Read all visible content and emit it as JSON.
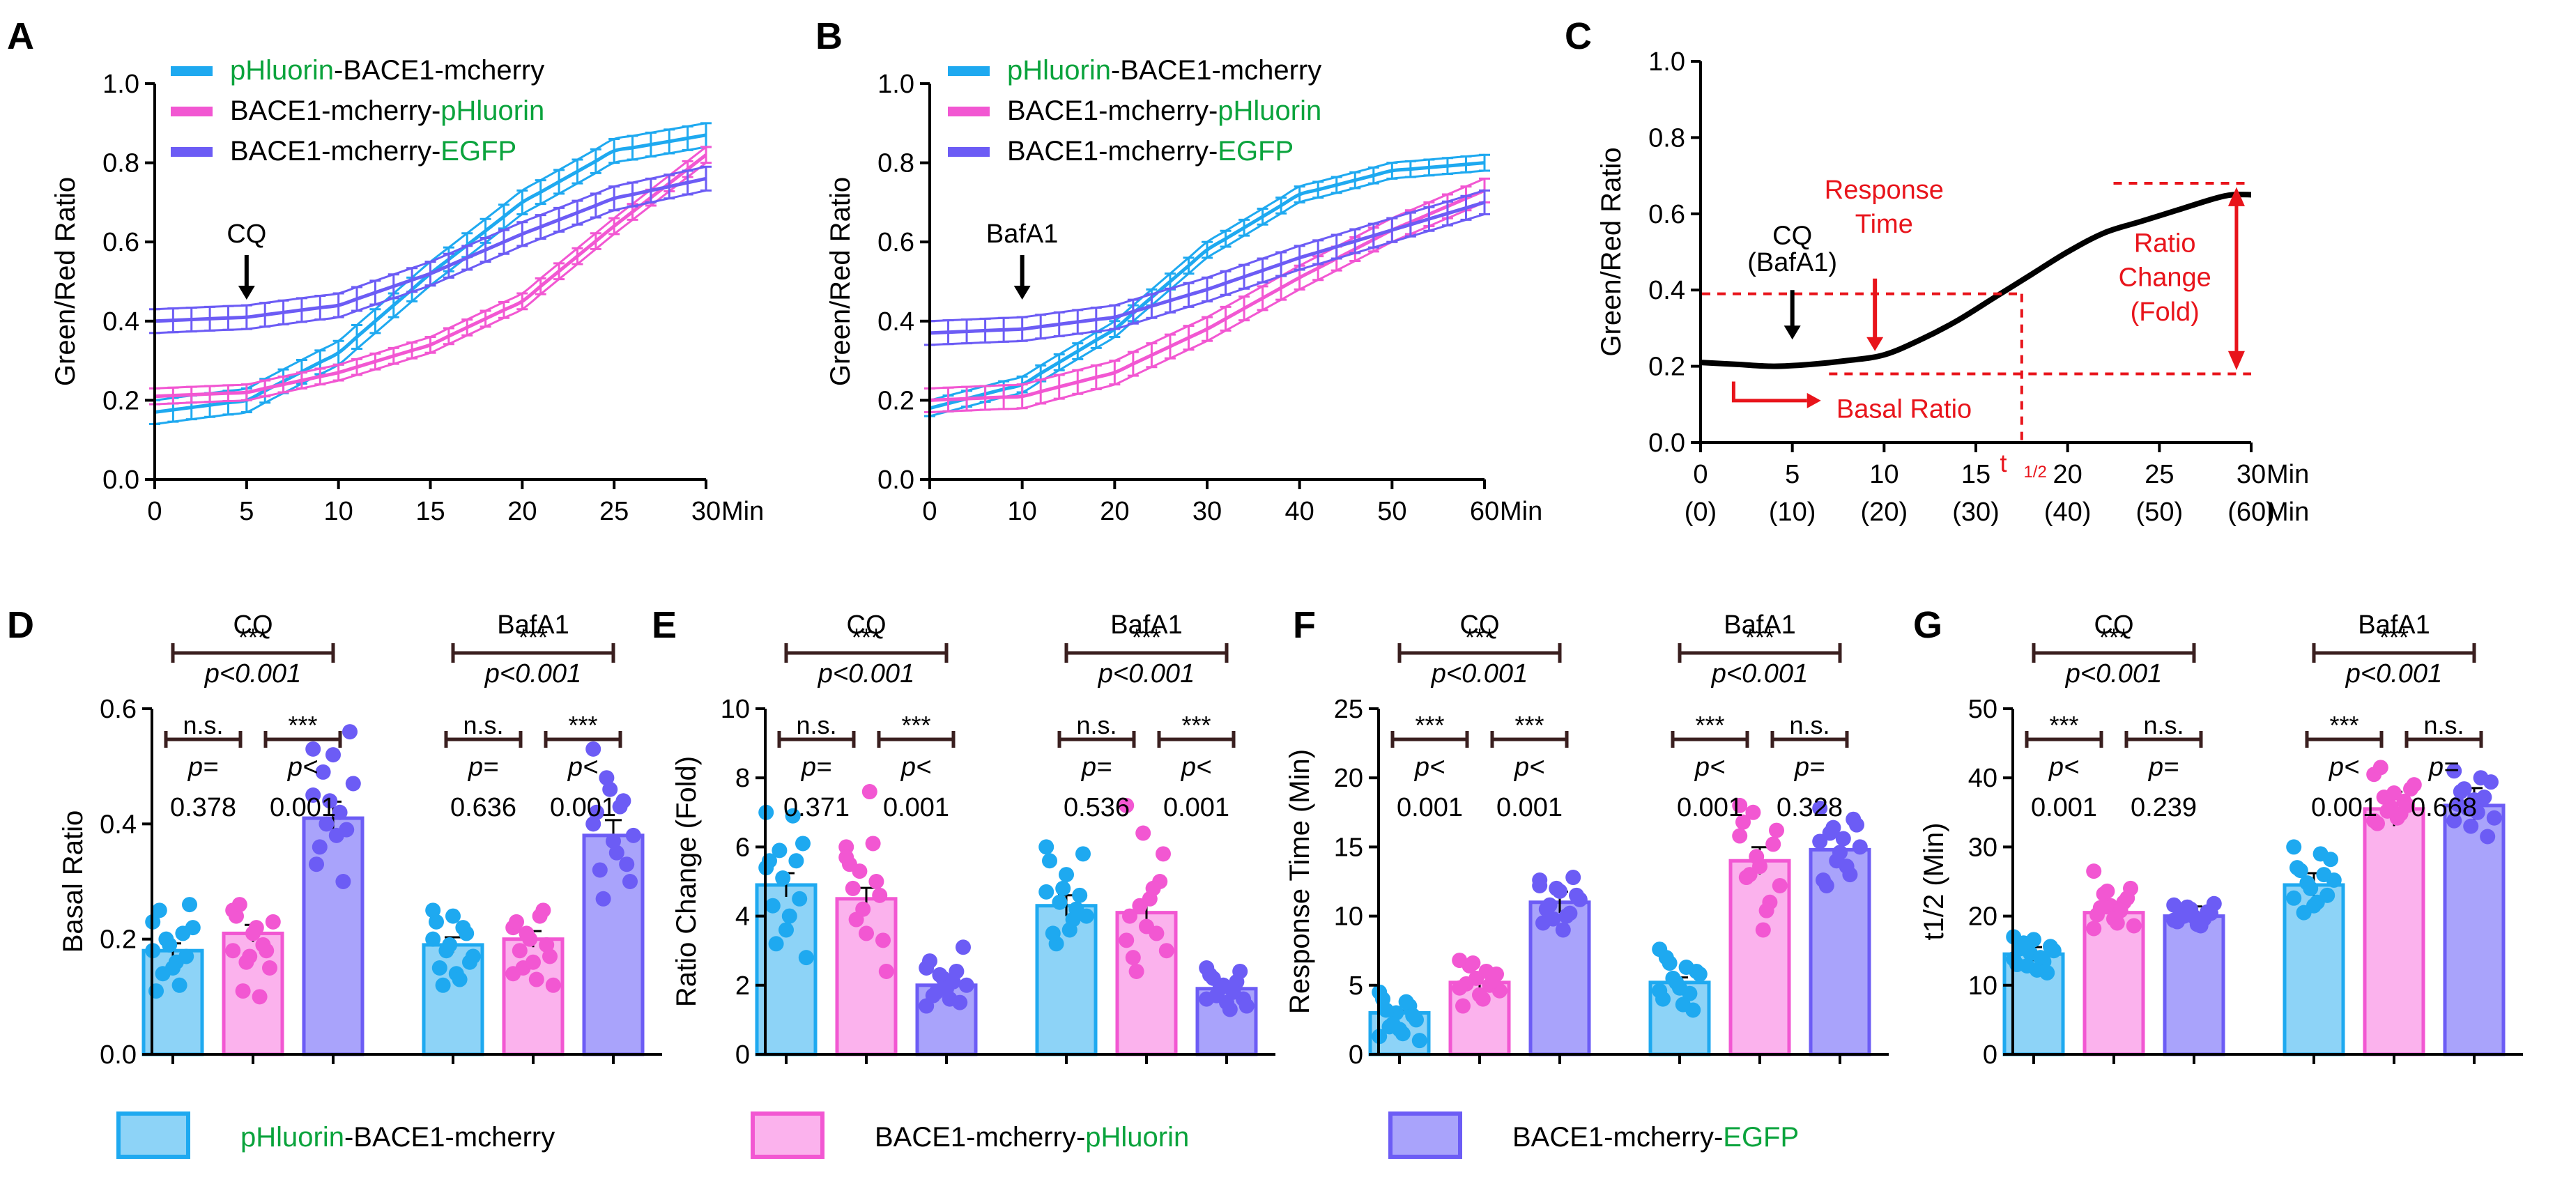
{
  "colors": {
    "blue": "#1ea9f0",
    "blue_fill": "#8dd3f7",
    "pink": "#f257d2",
    "pink_fill": "#fbb2ed",
    "purple": "#6c5cf5",
    "purple_fill": "#a9a3fb",
    "green": "#0aa33c",
    "red": "#e8141b",
    "dark": "#3a1f1f"
  },
  "legend_names": {
    "blue": {
      "a": "pHluorin",
      "b": "-BACE1-mcherry"
    },
    "pink": {
      "a": "BACE1-mcherry-",
      "b": "pHluorin"
    },
    "purple": {
      "a": "BACE1-mcherry-",
      "b": "EGFP"
    }
  },
  "chart_data": [
    {
      "panel": "A",
      "type": "line",
      "ylabel": "Green/Red Ratio",
      "xunit": "Min",
      "xlim": [
        0,
        30
      ],
      "ylim": [
        0,
        1.0
      ],
      "xticks": [
        "0",
        "5",
        "10",
        "15",
        "20",
        "25",
        "30"
      ],
      "yticks": [
        "0.0",
        "0.2",
        "0.4",
        "0.6",
        "0.8",
        "1.0"
      ],
      "annotation": {
        "label": "CQ",
        "x": 5
      },
      "series": [
        {
          "name": "pHluorin-BACE1-mcherry",
          "color": "blue",
          "x": [
            0,
            5,
            10,
            15,
            20,
            25,
            30
          ],
          "y": [
            0.17,
            0.2,
            0.32,
            0.52,
            0.7,
            0.83,
            0.87
          ],
          "err": 0.03
        },
        {
          "name": "BACE1-mcherry-pHluorin",
          "color": "pink",
          "x": [
            0,
            5,
            10,
            15,
            20,
            25,
            30
          ],
          "y": [
            0.21,
            0.22,
            0.27,
            0.34,
            0.45,
            0.64,
            0.82
          ],
          "err": 0.02
        },
        {
          "name": "BACE1-mcherry-EGFP",
          "color": "purple",
          "x": [
            0,
            5,
            10,
            15,
            20,
            25,
            30
          ],
          "y": [
            0.4,
            0.41,
            0.44,
            0.52,
            0.62,
            0.71,
            0.76
          ],
          "err": 0.03
        }
      ]
    },
    {
      "panel": "B",
      "type": "line",
      "ylabel": "Green/Red Ratio",
      "xunit": "Min",
      "xlim": [
        0,
        60
      ],
      "ylim": [
        0,
        1.0
      ],
      "xticks": [
        "0",
        "10",
        "20",
        "30",
        "40",
        "50",
        "60"
      ],
      "yticks": [
        "0.0",
        "0.2",
        "0.4",
        "0.6",
        "0.8",
        "1.0"
      ],
      "annotation": {
        "label": "BafA1",
        "x": 10
      },
      "series": [
        {
          "name": "pHluorin-BACE1-mcherry",
          "color": "blue",
          "x": [
            0,
            10,
            20,
            30,
            40,
            50,
            60
          ],
          "y": [
            0.18,
            0.24,
            0.38,
            0.58,
            0.72,
            0.78,
            0.8
          ],
          "err": 0.02
        },
        {
          "name": "BACE1-mcherry-pHluorin",
          "color": "pink",
          "x": [
            0,
            10,
            20,
            30,
            40,
            50,
            60
          ],
          "y": [
            0.2,
            0.21,
            0.27,
            0.38,
            0.51,
            0.63,
            0.73
          ],
          "err": 0.03
        },
        {
          "name": "BACE1-mcherry-EGFP",
          "color": "purple",
          "x": [
            0,
            10,
            20,
            30,
            40,
            50,
            60
          ],
          "y": [
            0.37,
            0.38,
            0.41,
            0.48,
            0.56,
            0.63,
            0.7
          ],
          "err": 0.03
        }
      ]
    },
    {
      "panel": "C",
      "type": "line",
      "ylabel": "Green/Red Ratio",
      "xunit": "Min",
      "xlim": [
        0,
        30
      ],
      "ylim": [
        0,
        1.0
      ],
      "xticks": [
        "0",
        "5",
        "10",
        "15",
        "20",
        "25",
        "30"
      ],
      "xticks2": [
        "(0)",
        "(10)",
        "(20)",
        "(30)",
        "(40)",
        "(50)",
        "(60)"
      ],
      "yticks": [
        "0.0",
        "0.2",
        "0.4",
        "0.6",
        "0.8",
        "1.0"
      ],
      "curve": {
        "x": [
          0,
          2,
          4,
          6,
          8,
          10,
          12,
          14,
          16,
          18,
          20,
          22,
          24,
          26,
          28,
          29,
          30
        ],
        "y": [
          0.21,
          0.205,
          0.2,
          0.205,
          0.215,
          0.23,
          0.27,
          0.32,
          0.38,
          0.44,
          0.5,
          0.55,
          0.58,
          0.61,
          0.64,
          0.65,
          0.65
        ]
      },
      "annotations": {
        "agent": "CQ",
        "agent2": "(BafA1)",
        "response": [
          "Response",
          "Time"
        ],
        "ratio_change": [
          "Ratio",
          "Change",
          "(Fold)"
        ],
        "basal": "Basal Ratio",
        "thalf": "t",
        "thalf_sub": "1/2"
      }
    },
    {
      "panel": "D",
      "type": "bar",
      "ylabel": "Basal  Ratio",
      "ylim": [
        0,
        0.6
      ],
      "yticks": [
        "0.0",
        "0.2",
        "0.4",
        "0.6"
      ],
      "groups": [
        {
          "label": "CQ",
          "values": [
            0.18,
            0.21,
            0.41
          ],
          "points": [
            [
              0.23,
              0.26,
              0.21,
              0.16,
              0.19,
              0.14,
              0.11,
              0.22,
              0.17,
              0.12,
              0.15,
              0.2,
              0.25,
              0.18
            ],
            [
              0.25,
              0.15,
              0.19,
              0.22,
              0.17,
              0.11,
              0.24,
              0.23,
              0.18,
              0.1,
              0.21,
              0.16,
              0.26,
              0.18
            ],
            [
              0.45,
              0.56,
              0.3,
              0.38,
              0.44,
              0.49,
              0.33,
              0.47,
              0.39,
              0.42,
              0.52,
              0.4,
              0.36,
              0.53
            ]
          ],
          "comparisons": [
            {
              "sig": "n.s.",
              "p1": "p=",
              "p2": "0.378"
            },
            {
              "sig": "***",
              "p1": "p<",
              "p2": "0.001"
            },
            {
              "sig": "***",
              "p1": "p<0.001",
              "p2": ""
            }
          ]
        },
        {
          "label": "BafA1",
          "values": [
            0.19,
            0.2,
            0.38
          ],
          "points": [
            [
              0.25,
              0.16,
              0.22,
              0.14,
              0.19,
              0.12,
              0.23,
              0.17,
              0.21,
              0.13,
              0.24,
              0.18,
              0.15,
              0.2
            ],
            [
              0.22,
              0.17,
              0.25,
              0.13,
              0.2,
              0.15,
              0.23,
              0.12,
              0.19,
              0.24,
              0.16,
              0.21,
              0.18,
              0.14
            ],
            [
              0.4,
              0.3,
              0.44,
              0.35,
              0.46,
              0.27,
              0.42,
              0.38,
              0.33,
              0.43,
              0.37,
              0.48,
              0.32,
              0.53
            ]
          ],
          "comparisons": [
            {
              "sig": "n.s.",
              "p1": "p=",
              "p2": "0.636"
            },
            {
              "sig": "***",
              "p1": "p<",
              "p2": "0.001"
            },
            {
              "sig": "***",
              "p1": "p<0.001",
              "p2": ""
            }
          ]
        }
      ]
    },
    {
      "panel": "E",
      "type": "bar",
      "ylabel": "Ratio Change (Fold)",
      "ylim": [
        0,
        10
      ],
      "yticks": [
        "0",
        "2",
        "4",
        "6",
        "8",
        "10"
      ],
      "groups": [
        {
          "label": "CQ",
          "values": [
            4.9,
            4.5,
            2.0
          ],
          "points": [
            [
              7.0,
              6.1,
              5.6,
              4.0,
              5.1,
              3.2,
              5.6,
              2.8,
              4.5,
              6.9,
              3.6,
              5.9,
              4.3,
              5.4
            ],
            [
              6.0,
              3.3,
              5.0,
              7.6,
              4.2,
              3.9,
              5.5,
              2.4,
              4.6,
              6.1,
              3.5,
              5.3,
              4.8,
              5.7
            ],
            [
              2.5,
              3.1,
              2.4,
              1.6,
              2.2,
              1.8,
              2.7,
              2.0,
              1.5,
              2.1,
              1.9,
              2.3,
              1.7,
              1.4
            ]
          ],
          "comparisons": [
            {
              "sig": "n.s.",
              "p1": "p=",
              "p2": "0.371"
            },
            {
              "sig": "***",
              "p1": "p<",
              "p2": "0.001"
            },
            {
              "sig": "***",
              "p1": "p<0.001",
              "p2": ""
            }
          ]
        },
        {
          "label": "BafA1",
          "values": [
            4.3,
            4.1,
            1.9
          ],
          "points": [
            [
              6.0,
              5.8,
              4.2,
              3.6,
              4.8,
              3.2,
              5.6,
              4.0,
              4.6,
              3.9,
              5.2,
              4.4,
              3.5,
              4.7
            ],
            [
              7.2,
              5.8,
              3.5,
              4.5,
              6.4,
              2.4,
              4.0,
              3.0,
              5.0,
              4.8,
              3.7,
              4.3,
              2.8,
              3.3
            ],
            [
              2.5,
              1.6,
              2.1,
              1.3,
              2.0,
              1.7,
              2.3,
              1.4,
              2.4,
              1.8,
              1.5,
              1.9,
              2.2,
              1.6
            ]
          ],
          "comparisons": [
            {
              "sig": "n.s.",
              "p1": "p=",
              "p2": "0.536"
            },
            {
              "sig": "***",
              "p1": "p<",
              "p2": "0.001"
            },
            {
              "sig": "***",
              "p1": "p<0.001",
              "p2": ""
            }
          ]
        }
      ]
    },
    {
      "panel": "F",
      "type": "bar",
      "ylabel": "Response Time (Min)",
      "ylim": [
        0,
        25
      ],
      "yticks": [
        "0",
        "5",
        "10",
        "15",
        "20",
        "25"
      ],
      "groups": [
        {
          "label": "CQ",
          "values": [
            3.0,
            5.2,
            11.0
          ],
          "points": [
            [
              4.5,
              2.5,
              3.5,
              1.5,
              3.0,
              2.0,
              4.0,
              1.0,
              2.8,
              3.8,
              1.8,
              2.2,
              3.2,
              1.3
            ],
            [
              6.8,
              5.8,
              5.0,
              4.0,
              5.5,
              6.4,
              3.5,
              4.6,
              5.3,
              6.0,
              4.3,
              6.6,
              5.1,
              4.8
            ],
            [
              12.6,
              11.5,
              10.2,
              9.0,
              12.0,
              10.8,
              9.5,
              11.2,
              12.8,
              10.0,
              11.8,
              9.8,
              10.5,
              12.2
            ]
          ],
          "comparisons": [
            {
              "sig": "***",
              "p1": "p<",
              "p2": "0.001"
            },
            {
              "sig": "***",
              "p1": "p<",
              "p2": "0.001"
            },
            {
              "sig": "***",
              "p1": "p<0.001",
              "p2": ""
            }
          ]
        },
        {
          "label": "BafA1",
          "values": [
            5.2,
            14.0,
            14.8
          ],
          "points": [
            [
              7.6,
              6.0,
              4.4,
              3.6,
              5.2,
              6.6,
              4.0,
              5.8,
              3.2,
              6.3,
              4.8,
              5.5,
              7.0,
              4.6
            ],
            [
              18.0,
              16.2,
              11.0,
              9.0,
              14.3,
              13.0,
              16.8,
              12.2,
              15.2,
              10.4,
              13.6,
              17.5,
              12.8,
              15.8
            ],
            [
              17.8,
              16.6,
              13.0,
              15.6,
              14.0,
              16.0,
              12.6,
              15.0,
              17.0,
              13.6,
              14.6,
              16.4,
              12.2,
              15.4
            ]
          ],
          "comparisons": [
            {
              "sig": "***",
              "p1": "p<",
              "p2": "0.001"
            },
            {
              "sig": "n.s.",
              "p1": "p=",
              "p2": "0.328"
            },
            {
              "sig": "***",
              "p1": "p<0.001",
              "p2": ""
            }
          ]
        }
      ]
    },
    {
      "panel": "G",
      "type": "bar",
      "ylabel": "t1/2 (Min)",
      "ylim": [
        0,
        50
      ],
      "yticks": [
        "0",
        "10",
        "20",
        "30",
        "40",
        "50"
      ],
      "groups": [
        {
          "label": "CQ",
          "values": [
            14.5,
            20.5,
            20.0
          ],
          "points": [
            [
              17.0,
              15.6,
              13.4,
              12.2,
              14.6,
              16.1,
              13.0,
              15.0,
              11.8,
              14.0,
              16.6,
              12.8,
              15.3,
              13.8
            ],
            [
              26.5,
              24.0,
              22.0,
              19.0,
              21.5,
              23.2,
              20.2,
              18.6,
              22.6,
              20.8,
              19.6,
              23.6,
              21.2,
              18.2
            ],
            [
              21.6,
              20.4,
              19.6,
              18.8,
              21.0,
              20.0,
              19.2,
              21.8,
              20.6,
              18.6,
              19.9,
              21.3,
              20.3,
              19.4
            ]
          ],
          "comparisons": [
            {
              "sig": "***",
              "p1": "p<",
              "p2": "0.001"
            },
            {
              "sig": "n.s.",
              "p1": "p=",
              "p2": "0.239"
            },
            {
              "sig": "***",
              "p1": "p<0.001",
              "p2": ""
            }
          ]
        },
        {
          "label": "BafA1",
          "values": [
            24.5,
            35.5,
            36.0
          ],
          "points": [
            [
              30.0,
              28.2,
              26.0,
              22.0,
              24.0,
              20.5,
              27.0,
              25.2,
              23.0,
              29.0,
              21.5,
              24.8,
              26.6,
              22.6
            ],
            [
              40.5,
              38.4,
              36.6,
              34.2,
              35.8,
              37.2,
              33.4,
              39.0,
              36.0,
              34.8,
              37.8,
              35.2,
              41.5,
              33.8
            ],
            [
              41.0,
              39.4,
              37.2,
              35.0,
              33.0,
              38.4,
              36.2,
              34.2,
              31.5,
              40.0,
              36.8,
              35.6,
              38.0,
              33.8
            ]
          ],
          "comparisons": [
            {
              "sig": "***",
              "p1": "p<",
              "p2": "0.001"
            },
            {
              "sig": "n.s.",
              "p1": "p=",
              "p2": "0.668"
            },
            {
              "sig": "***",
              "p1": "p<0.001",
              "p2": ""
            }
          ]
        }
      ]
    }
  ]
}
